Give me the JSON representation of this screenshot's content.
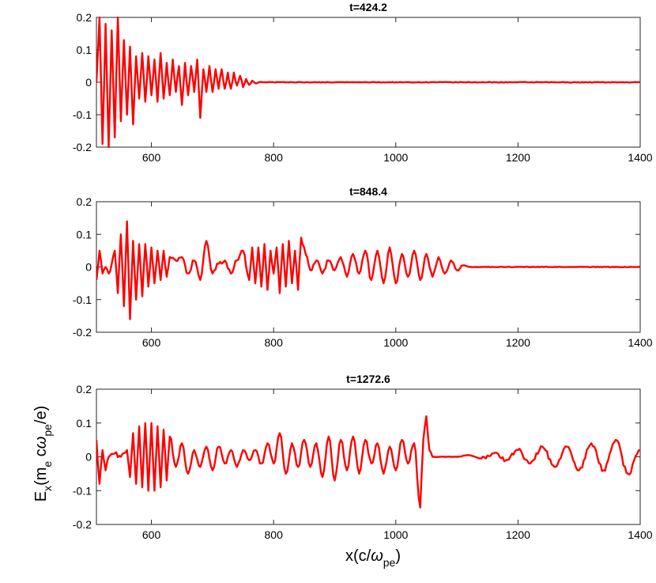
{
  "chart_data": [
    {
      "type": "line",
      "title": "t=424.2",
      "xlim": [
        510,
        1400
      ],
      "ylim": [
        -0.2,
        0.2
      ],
      "xticks": [
        "600",
        "800",
        "1000",
        "1200",
        "1400"
      ],
      "yticks": [
        "0.2",
        "0.1",
        "0",
        "-0.1",
        "-0.2"
      ],
      "xlabel": "",
      "ylabel": "",
      "grid": false,
      "color": "#ff0000",
      "series": [
        {
          "x": [
            510,
            515,
            520,
            525,
            530,
            535,
            540,
            545,
            550,
            555,
            560,
            565,
            570,
            575,
            580,
            585,
            590,
            595,
            600,
            605,
            610,
            615,
            620,
            625,
            630,
            635,
            640,
            645,
            650,
            655,
            660,
            665,
            670,
            675,
            680,
            685,
            690,
            695,
            700,
            705,
            710,
            715,
            720,
            725,
            730,
            735,
            740,
            745,
            750,
            755,
            760,
            765,
            770,
            780,
            800,
            900,
            1000,
            1100,
            1200,
            1300,
            1400
          ],
          "y": [
            0.0,
            0.2,
            -0.19,
            0.18,
            -0.2,
            0.16,
            -0.17,
            0.2,
            -0.12,
            0.13,
            -0.1,
            0.11,
            -0.13,
            0.08,
            -0.05,
            0.09,
            -0.06,
            0.08,
            -0.04,
            0.07,
            -0.06,
            0.09,
            -0.05,
            0.06,
            -0.04,
            0.07,
            -0.03,
            0.05,
            -0.07,
            0.06,
            -0.04,
            0.05,
            -0.03,
            0.07,
            -0.11,
            0.04,
            -0.03,
            0.05,
            -0.03,
            0.04,
            -0.02,
            0.04,
            -0.02,
            0.03,
            -0.02,
            0.03,
            -0.01,
            0.02,
            -0.015,
            0.01,
            -0.008,
            0.005,
            -0.003,
            0.001,
            0.0,
            0.0,
            0.0,
            0.0,
            0.0,
            0.0,
            0.0
          ]
        }
      ]
    },
    {
      "type": "line",
      "title": "t=848.4",
      "xlim": [
        510,
        1400
      ],
      "ylim": [
        -0.2,
        0.2
      ],
      "xticks": [
        "600",
        "800",
        "1000",
        "1200",
        "1400"
      ],
      "yticks": [
        "0.2",
        "0.1",
        "0",
        "-0.1",
        "-0.2"
      ],
      "xlabel": "",
      "ylabel": "",
      "grid": false,
      "color": "#ff0000",
      "series": [
        {
          "x": [
            510,
            515,
            520,
            525,
            530,
            540,
            545,
            550,
            555,
            560,
            565,
            570,
            575,
            580,
            585,
            590,
            595,
            600,
            605,
            610,
            615,
            620,
            625,
            630,
            640,
            650,
            660,
            670,
            680,
            690,
            700,
            710,
            720,
            730,
            740,
            750,
            760,
            765,
            770,
            775,
            780,
            785,
            790,
            795,
            800,
            805,
            810,
            815,
            820,
            825,
            830,
            835,
            840,
            845,
            850,
            855,
            860,
            870,
            880,
            890,
            900,
            910,
            920,
            930,
            940,
            950,
            960,
            970,
            980,
            990,
            1000,
            1010,
            1020,
            1030,
            1040,
            1050,
            1060,
            1070,
            1080,
            1090,
            1100,
            1110,
            1120,
            1150,
            1200,
            1300,
            1400
          ],
          "y": [
            -0.04,
            0.05,
            -0.02,
            0.0,
            -0.02,
            0.05,
            -0.08,
            0.1,
            -0.12,
            0.14,
            -0.16,
            0.08,
            -0.1,
            0.07,
            -0.09,
            0.07,
            -0.06,
            0.06,
            -0.05,
            0.05,
            -0.04,
            0.05,
            -0.03,
            0.03,
            0.02,
            0.03,
            -0.02,
            0.02,
            -0.04,
            0.08,
            -0.02,
            0.01,
            0.02,
            -0.02,
            0.02,
            0.05,
            -0.04,
            0.06,
            -0.05,
            0.06,
            -0.06,
            0.07,
            -0.07,
            0.05,
            -0.02,
            0.06,
            -0.08,
            0.07,
            -0.06,
            0.08,
            -0.05,
            0.05,
            -0.07,
            0.09,
            0.06,
            0.03,
            -0.01,
            0.02,
            -0.02,
            0.02,
            -0.01,
            0.03,
            -0.03,
            0.04,
            -0.02,
            0.05,
            -0.04,
            0.05,
            -0.05,
            0.06,
            -0.05,
            0.04,
            -0.03,
            0.05,
            -0.04,
            0.04,
            -0.03,
            0.03,
            -0.02,
            0.02,
            -0.01,
            0.005,
            0.0,
            0.0,
            0.0,
            0.0,
            0.0
          ]
        }
      ]
    },
    {
      "type": "line",
      "title": "t=1272.6",
      "xlim": [
        510,
        1400
      ],
      "ylim": [
        -0.2,
        0.2
      ],
      "xticks": [
        "600",
        "800",
        "1000",
        "1200",
        "1400"
      ],
      "yticks": [
        "0.2",
        "0.1",
        "0",
        "-0.1",
        "-0.2"
      ],
      "xlabel": "x(c/ω_pe)",
      "ylabel": "E_x(m_e c ω_pe/e)",
      "grid": false,
      "color": "#ff0000",
      "series": [
        {
          "x": [
            510,
            515,
            520,
            525,
            530,
            540,
            550,
            560,
            565,
            570,
            575,
            580,
            585,
            590,
            595,
            600,
            605,
            610,
            615,
            620,
            625,
            630,
            640,
            650,
            660,
            670,
            680,
            690,
            700,
            710,
            720,
            730,
            740,
            750,
            760,
            770,
            780,
            790,
            800,
            810,
            820,
            830,
            840,
            850,
            860,
            870,
            880,
            890,
            900,
            910,
            920,
            930,
            940,
            950,
            960,
            970,
            980,
            990,
            1000,
            1010,
            1020,
            1030,
            1040,
            1045,
            1050,
            1055,
            1060,
            1070,
            1080,
            1100,
            1120,
            1140,
            1160,
            1180,
            1200,
            1220,
            1240,
            1260,
            1280,
            1300,
            1320,
            1340,
            1360,
            1380,
            1400
          ],
          "y": [
            0.05,
            -0.08,
            0.02,
            -0.04,
            0.0,
            0.01,
            0.0,
            0.02,
            -0.06,
            0.07,
            -0.08,
            0.09,
            -0.09,
            0.1,
            -0.1,
            0.1,
            -0.1,
            0.09,
            -0.09,
            0.08,
            -0.07,
            0.06,
            -0.03,
            0.04,
            -0.05,
            0.02,
            -0.03,
            0.03,
            -0.04,
            0.03,
            -0.02,
            0.02,
            -0.03,
            0.02,
            -0.01,
            0.02,
            -0.02,
            0.04,
            -0.02,
            0.07,
            -0.05,
            0.04,
            -0.03,
            0.05,
            -0.03,
            0.04,
            -0.06,
            0.06,
            -0.07,
            0.05,
            -0.04,
            0.06,
            -0.05,
            0.05,
            -0.02,
            0.04,
            -0.05,
            0.03,
            -0.04,
            0.05,
            -0.02,
            0.04,
            -0.15,
            0.05,
            0.12,
            0.02,
            0.0,
            0.0,
            0.0,
            0.0,
            0.005,
            -0.005,
            0.01,
            -0.01,
            0.02,
            -0.02,
            0.03,
            -0.03,
            0.03,
            -0.04,
            0.04,
            -0.04,
            0.05,
            -0.05,
            0.02
          ]
        }
      ]
    }
  ]
}
